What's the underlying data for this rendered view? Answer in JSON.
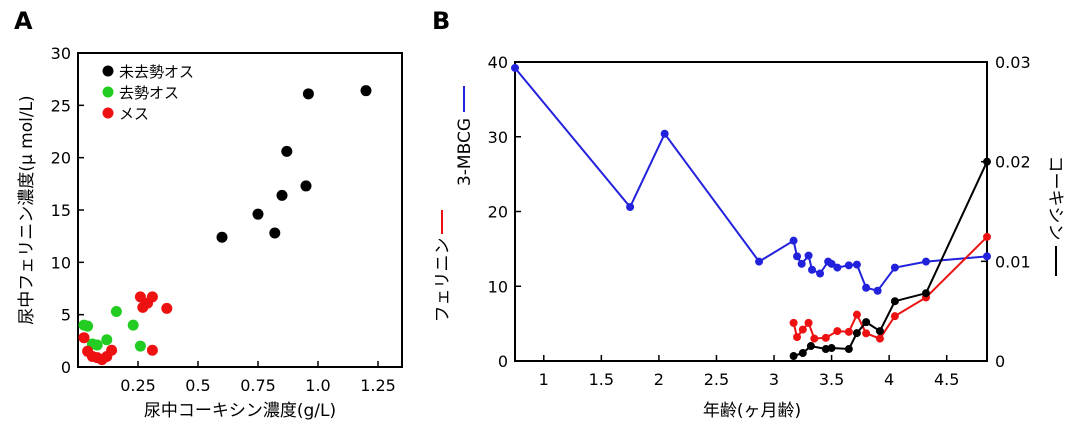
{
  "chart_data": [
    {
      "panel_label": "A",
      "type": "scatter",
      "xlabel": "尿中コーキシン濃度(g/L)",
      "ylabel": "尿中フェリニン濃度(μ mol/L)",
      "xlim": [
        0,
        1.35
      ],
      "ylim": [
        0,
        30
      ],
      "xticks": [
        "0.25",
        "0.5",
        "0.75",
        "1.0",
        "1.25"
      ],
      "xtick_values": [
        0.25,
        0.5,
        0.75,
        1.0,
        1.25
      ],
      "yticks": [
        "0",
        "5",
        "10",
        "15",
        "20",
        "25",
        "30"
      ],
      "ytick_values": [
        0,
        5,
        10,
        15,
        20,
        25,
        30
      ],
      "legend_position": "top-right",
      "series": [
        {
          "name": "未去勢オス",
          "color": "#000000",
          "points": [
            [
              0.6,
              12.4
            ],
            [
              0.75,
              14.6
            ],
            [
              0.82,
              12.8
            ],
            [
              0.85,
              16.4
            ],
            [
              0.87,
              20.6
            ],
            [
              0.95,
              17.3
            ],
            [
              0.96,
              26.1
            ],
            [
              1.2,
              26.4
            ]
          ]
        },
        {
          "name": "去勢オス",
          "color": "#22cc22",
          "points": [
            [
              0.0,
              4.0
            ],
            [
              0.04,
              3.9
            ],
            [
              0.06,
              2.2
            ],
            [
              0.08,
              2.1
            ],
            [
              0.12,
              2.6
            ],
            [
              0.16,
              5.3
            ],
            [
              0.23,
              4.0
            ],
            [
              0.26,
              2.0
            ]
          ]
        },
        {
          "name": "メス",
          "color": "#ee1111",
          "points": [
            [
              0.02,
              2.8
            ],
            [
              0.04,
              1.5
            ],
            [
              0.06,
              1.0
            ],
            [
              0.08,
              0.9
            ],
            [
              0.1,
              0.7
            ],
            [
              0.12,
              1.0
            ],
            [
              0.14,
              1.6
            ],
            [
              0.26,
              6.7
            ],
            [
              0.27,
              5.7
            ],
            [
              0.29,
              6.1
            ],
            [
              0.31,
              6.7
            ],
            [
              0.31,
              1.6
            ],
            [
              0.37,
              5.6
            ]
          ]
        }
      ]
    },
    {
      "panel_label": "B",
      "type": "line",
      "xlabel": "年齢(ヶ月齢)",
      "ylabel_left_parts": [
        {
          "text": "フェリニン",
          "color": "#ee1111"
        },
        {
          "text": "3-MBCG",
          "color": "#2222dd"
        }
      ],
      "ylabel_right": "コーキシン",
      "ylabel_right_color": "#000000",
      "xlim": [
        0.75,
        4.85
      ],
      "ylim_left": [
        0,
        40
      ],
      "ylim_right": [
        0,
        0.03
      ],
      "xticks": [
        "1",
        "1.5",
        "2",
        "2.5",
        "3",
        "3.5",
        "4",
        "4.5"
      ],
      "xtick_values": [
        1,
        1.5,
        2,
        2.5,
        3,
        3.5,
        4,
        4.5
      ],
      "yticks_left": [
        "0",
        "10",
        "20",
        "30",
        "40"
      ],
      "ytick_left_values": [
        0,
        10,
        20,
        30,
        40
      ],
      "yticks_right": [
        "0",
        "0.01",
        "0.02",
        "0.03"
      ],
      "ytick_right_values": [
        0,
        0.01,
        0.02,
        0.03
      ],
      "series": [
        {
          "name": "3-MBCG",
          "color": "#2222dd",
          "axis": "left",
          "points": [
            [
              0.75,
              39.2
            ],
            [
              1.75,
              20.6
            ],
            [
              2.05,
              30.4
            ],
            [
              2.87,
              13.3
            ],
            [
              3.17,
              16.1
            ],
            [
              3.2,
              14.0
            ],
            [
              3.24,
              13.0
            ],
            [
              3.3,
              14.1
            ],
            [
              3.33,
              12.2
            ],
            [
              3.4,
              11.7
            ],
            [
              3.47,
              13.3
            ],
            [
              3.5,
              13.0
            ],
            [
              3.55,
              12.5
            ],
            [
              3.65,
              12.8
            ],
            [
              3.72,
              12.9
            ],
            [
              3.8,
              9.8
            ],
            [
              3.9,
              9.4
            ],
            [
              4.05,
              12.5
            ],
            [
              4.32,
              13.3
            ],
            [
              4.85,
              14.0
            ]
          ]
        },
        {
          "name": "フェリニン",
          "color": "#ee1111",
          "axis": "left",
          "points": [
            [
              3.17,
              5.1
            ],
            [
              3.2,
              3.2
            ],
            [
              3.25,
              4.2
            ],
            [
              3.3,
              5.1
            ],
            [
              3.35,
              3.0
            ],
            [
              3.45,
              3.1
            ],
            [
              3.55,
              4.0
            ],
            [
              3.65,
              3.9
            ],
            [
              3.72,
              6.2
            ],
            [
              3.8,
              3.7
            ],
            [
              3.92,
              3.0
            ],
            [
              4.05,
              6.0
            ],
            [
              4.32,
              8.5
            ],
            [
              4.85,
              16.6
            ]
          ]
        },
        {
          "name": "コーキシン",
          "color": "#000000",
          "axis": "right",
          "points": [
            [
              3.17,
              0.0005
            ],
            [
              3.25,
              0.0008
            ],
            [
              3.32,
              0.0015
            ],
            [
              3.45,
              0.0012
            ],
            [
              3.5,
              0.0013
            ],
            [
              3.65,
              0.0012
            ],
            [
              3.72,
              0.0028
            ],
            [
              3.8,
              0.0039
            ],
            [
              3.92,
              0.003
            ],
            [
              4.05,
              0.006
            ],
            [
              4.32,
              0.0068
            ],
            [
              4.85,
              0.02
            ]
          ]
        }
      ]
    }
  ]
}
